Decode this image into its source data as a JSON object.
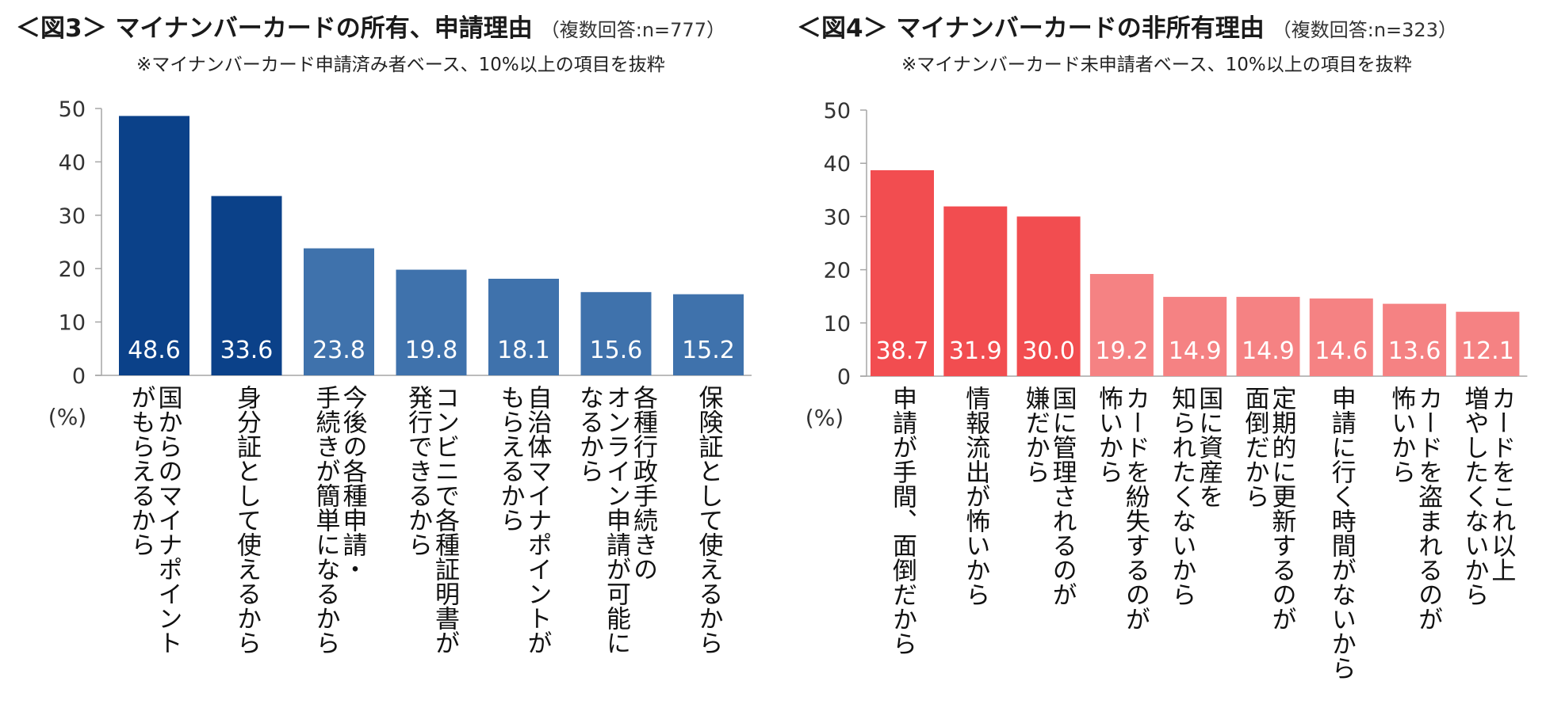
{
  "chart_data": [
    {
      "type": "bar",
      "title": "＜図3＞ マイナンバーカードの所有、申請理由",
      "title_note": "（複数回答:n=777）",
      "subtitle": "※マイナンバーカード申請済み者ベース、10%以上の項目を抜粋",
      "ylabel": "(%)",
      "ylim": [
        0,
        50
      ],
      "yticks": [
        "0",
        "10",
        "20",
        "30",
        "40",
        "50"
      ],
      "categories": [
        "国からのマイナポイント\nがもらえるから",
        "身分証として使えるから",
        "今後の各種申請・\n手続きが簡単になるから",
        "コンビニで各種証明書が\n発行できるから",
        "自治体マイナポイントが\nもらえるから",
        "各種行政手続きの\nオンライン申請が可能に\nなるから",
        "保険証として使えるから"
      ],
      "values": [
        48.6,
        33.6,
        23.8,
        19.8,
        18.1,
        15.6,
        15.2
      ],
      "value_labels": [
        "48.6",
        "33.6",
        "23.8",
        "19.8",
        "18.1",
        "15.6",
        "15.2"
      ],
      "bar_colors": [
        "#0b4189",
        "#0b4189",
        "#3f72ac",
        "#3f72ac",
        "#3f72ac",
        "#3f72ac",
        "#3f72ac"
      ]
    },
    {
      "type": "bar",
      "title": "＜図4＞ マイナンバーカードの非所有理由",
      "title_note": "（複数回答:n=323）",
      "subtitle": "※マイナンバーカード未申請者ベース、10%以上の項目を抜粋",
      "ylabel": "(%)",
      "ylim": [
        0,
        50
      ],
      "yticks": [
        "0",
        "10",
        "20",
        "30",
        "40",
        "50"
      ],
      "categories": [
        "申請が手間、面倒だから",
        "情報流出が怖いから",
        "国に管理されるのが\n嫌だから",
        "カードを紛失するのが\n怖いから",
        "国に資産を\n知られたくないから",
        "定期的に更新するのが\n面倒だから",
        "申請に行く時間がないから",
        "カードを盗まれるのが\n怖いから",
        "カードをこれ以上\n増やしたくないから"
      ],
      "values": [
        38.7,
        31.9,
        30.0,
        19.2,
        14.9,
        14.9,
        14.6,
        13.6,
        12.1
      ],
      "value_labels": [
        "38.7",
        "31.9",
        "30.0",
        "19.2",
        "14.9",
        "14.9",
        "14.6",
        "13.6",
        "12.1"
      ],
      "bar_colors": [
        "#f24d50",
        "#f24d50",
        "#f24d50",
        "#f58283",
        "#f58283",
        "#f58283",
        "#f58283",
        "#f58283",
        "#f58283"
      ]
    }
  ]
}
